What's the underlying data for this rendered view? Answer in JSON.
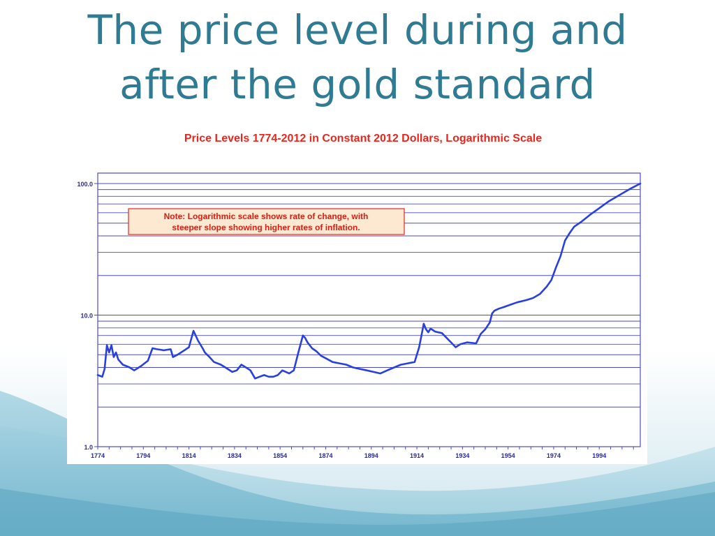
{
  "slide": {
    "title_line1": "The price level during and",
    "title_line2": "after the gold standard"
  },
  "colors": {
    "title": "#2f7b93",
    "chart_title": "#e8261c",
    "line": "#2a3fe0",
    "grid": "#4b4bc8",
    "note_bg": "#fde8d2",
    "note_border": "#e8261c",
    "note_text": "#d81e14"
  },
  "chart_data": {
    "type": "line",
    "title": "Price Levels 1774-2012 in Constant 2012 Dollars, Logarithmic Scale",
    "xlabel": "",
    "ylabel": "",
    "y_scale": "log",
    "ylim": [
      1,
      100
    ],
    "xlim": [
      1774,
      2012
    ],
    "x_ticks": [
      "1774",
      "1794",
      "1814",
      "1834",
      "1854",
      "1874",
      "1894",
      "1914",
      "1934",
      "1954",
      "1974",
      "1994"
    ],
    "y_ticks": [
      "1.0",
      "10.0",
      "100.0"
    ],
    "grid": true,
    "note": {
      "line1": "Note:  Logarithmic scale shows rate of change, with",
      "line2": "steeper slope showing higher rates of inflation."
    },
    "series": [
      {
        "x": [
          1774,
          1776,
          1777,
          1778,
          1779,
          1780,
          1781,
          1782,
          1783,
          1785,
          1788,
          1790,
          1793,
          1796,
          1798,
          1800,
          1803,
          1806,
          1807,
          1809,
          1812,
          1814,
          1816,
          1818,
          1820,
          1821,
          1823,
          1825,
          1828,
          1830,
          1833,
          1835,
          1837,
          1839,
          1841,
          1843,
          1845,
          1847,
          1849,
          1851,
          1853,
          1855,
          1858,
          1860,
          1862,
          1864,
          1865,
          1866,
          1868,
          1870,
          1872,
          1874,
          1877,
          1880,
          1883,
          1886,
          1889,
          1892,
          1895,
          1898,
          1901,
          1904,
          1907,
          1910,
          1913,
          1915,
          1917,
          1918,
          1919,
          1920,
          1922,
          1925,
          1929,
          1931,
          1933,
          1936,
          1940,
          1942,
          1944,
          1946,
          1947,
          1948,
          1950,
          1952,
          1955,
          1958,
          1962,
          1965,
          1968,
          1971,
          1973,
          1975,
          1977,
          1979,
          1981,
          1983,
          1986,
          1990,
          1994,
          1998,
          2003,
          2008,
          2012
        ],
        "values": [
          3.5,
          3.4,
          3.9,
          5.9,
          5.2,
          5.9,
          4.8,
          5.2,
          4.6,
          4.2,
          4.0,
          3.8,
          4.1,
          4.5,
          5.6,
          5.5,
          5.4,
          5.5,
          4.8,
          5.0,
          5.4,
          5.7,
          7.6,
          6.4,
          5.6,
          5.2,
          4.8,
          4.4,
          4.2,
          4.0,
          3.7,
          3.8,
          4.2,
          4.0,
          3.8,
          3.3,
          3.4,
          3.5,
          3.4,
          3.4,
          3.5,
          3.8,
          3.6,
          3.8,
          5.2,
          7.0,
          6.7,
          6.2,
          5.6,
          5.3,
          4.9,
          4.7,
          4.4,
          4.3,
          4.2,
          4.0,
          3.9,
          3.8,
          3.7,
          3.6,
          3.8,
          4.0,
          4.2,
          4.3,
          4.4,
          5.7,
          8.6,
          7.8,
          7.4,
          7.9,
          7.5,
          7.3,
          6.2,
          5.7,
          6.0,
          6.2,
          6.1,
          7.2,
          7.8,
          8.8,
          10.3,
          10.8,
          11.2,
          11.5,
          12.0,
          12.5,
          13.0,
          13.5,
          14.5,
          16.5,
          18.5,
          23,
          28,
          37,
          42,
          47,
          51,
          58,
          65,
          73,
          82,
          92,
          100
        ]
      }
    ]
  }
}
